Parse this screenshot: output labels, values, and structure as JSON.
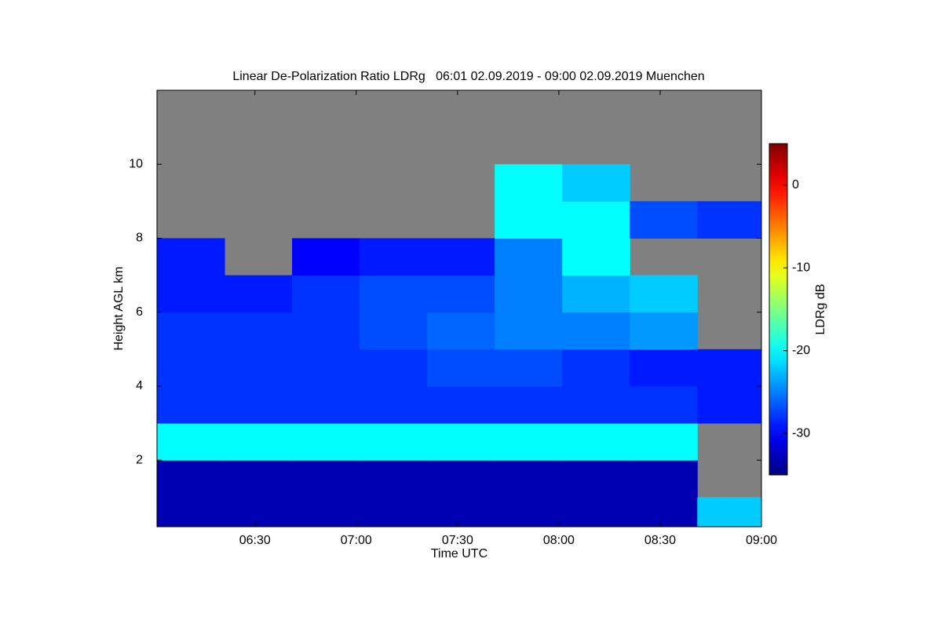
{
  "chart_data": {
    "type": "heatmap",
    "title": "Linear De-Polarization Ratio LDRg   06:01 02.09.2019 - 09:00 02.09.2019 Muenchen",
    "xlabel": "Time UTC",
    "ylabel": "Height AGL km",
    "colorbar_label": "LDRg dB",
    "x": [
      "06:01",
      "06:21",
      "06:41",
      "07:01",
      "07:21",
      "07:41",
      "08:01",
      "08:21",
      "08:41"
    ],
    "ybins": [
      0.2,
      1,
      2,
      3,
      4,
      5,
      6,
      7,
      8,
      9,
      10,
      11,
      12
    ],
    "values": [
      [
        -33,
        -33,
        -33,
        -33,
        -33,
        -33,
        -33,
        -33,
        -22
      ],
      [
        -33,
        -33,
        -33,
        -33,
        -33,
        -33,
        -33,
        -33,
        null
      ],
      [
        -20,
        -20,
        -20,
        -20,
        -20,
        -20,
        -20,
        -20,
        null
      ],
      [
        -28,
        -28,
        -28,
        -28,
        -28,
        -28,
        -28,
        -28,
        -29
      ],
      [
        -28,
        -28,
        -28,
        -28,
        -27,
        -27,
        -28,
        -29,
        -29
      ],
      [
        -28,
        -28,
        -28,
        -27,
        -26,
        -25,
        -25,
        -24,
        null
      ],
      [
        -29,
        -29,
        -28,
        -27,
        -27,
        -25,
        -23,
        -22,
        null
      ],
      [
        -29,
        null,
        -30,
        -29,
        -29,
        -25,
        -20,
        null,
        null
      ],
      [
        null,
        null,
        null,
        null,
        null,
        -20,
        -20,
        -27,
        -28
      ],
      [
        null,
        null,
        null,
        null,
        null,
        -20,
        -22,
        null,
        null
      ],
      [
        null,
        null,
        null,
        null,
        null,
        null,
        null,
        null,
        null
      ],
      [
        null,
        null,
        null,
        null,
        null,
        null,
        null,
        null,
        null
      ]
    ],
    "xlim": [
      "06:01",
      "09:00"
    ],
    "xticks": [
      "06:30",
      "07:00",
      "07:30",
      "08:00",
      "08:30",
      "09:00"
    ],
    "ylim": [
      0.2,
      12
    ],
    "yticks": [
      2,
      4,
      6,
      8,
      10
    ],
    "zlim": [
      -35,
      5
    ],
    "zticks": [
      0,
      -10,
      -20,
      -30
    ],
    "colormap": "jet",
    "missing_color": "#808080"
  }
}
